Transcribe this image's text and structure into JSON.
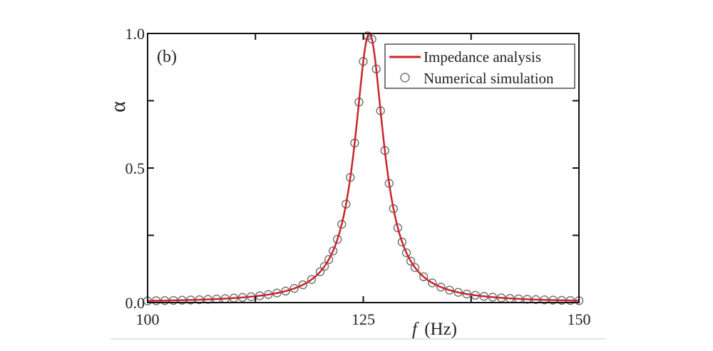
{
  "chart_data": {
    "type": "line",
    "panel_label": "(b)",
    "xlabel_italic": "f",
    "xlabel_unit": "(Hz)",
    "ylabel": "α",
    "xlim": [
      100,
      150
    ],
    "ylim": [
      0,
      1.0
    ],
    "x_ticks": [
      100,
      125,
      150
    ],
    "x_tick_labels": [
      "100",
      "125",
      "150"
    ],
    "x_minor_ticks": [
      112.5,
      137.5
    ],
    "y_ticks": [
      0.0,
      0.5,
      1.0
    ],
    "y_tick_labels": [
      "0.0",
      "0.5",
      "1.0"
    ],
    "y_minor_ticks": [
      0.25,
      0.75
    ],
    "grid": false,
    "legend_position": "top-right",
    "legend": [
      "Impedance analysis",
      "Numerical simulation"
    ],
    "colors": {
      "line": "#c8262c",
      "markers": "#777777",
      "axes": "#111111"
    },
    "series": [
      {
        "name": "Impedance analysis",
        "style": "line",
        "model": "lorentzian",
        "f0": 125.7,
        "gamma": 2.05,
        "peak": 1.0
      },
      {
        "name": "Numerical simulation",
        "style": "open-circle",
        "x": [
          100,
          101,
          102,
          103,
          104,
          105,
          106,
          107,
          108,
          109,
          110,
          111,
          112,
          113,
          114,
          115,
          116,
          117,
          118,
          119,
          120,
          120.5,
          121,
          121.5,
          122,
          122.5,
          123,
          123.5,
          124,
          124.5,
          125,
          125.5,
          126,
          126.5,
          127,
          127.5,
          128,
          128.5,
          129,
          129.5,
          130,
          130.5,
          131,
          132,
          133,
          134,
          135,
          136,
          137,
          138,
          139,
          140,
          141,
          142,
          143,
          144,
          145,
          146,
          147,
          148,
          149,
          150
        ],
        "y": [
          0.0063,
          0.0068,
          0.0074,
          0.0081,
          0.0088,
          0.0097,
          0.0107,
          0.0119,
          0.0132,
          0.0148,
          0.0168,
          0.0191,
          0.0219,
          0.0254,
          0.0298,
          0.0354,
          0.0428,
          0.0526,
          0.066,
          0.0855,
          0.1145,
          0.1345,
          0.16,
          0.192,
          0.235,
          0.291,
          0.366,
          0.465,
          0.593,
          0.745,
          0.896,
          0.991,
          0.979,
          0.868,
          0.713,
          0.565,
          0.443,
          0.349,
          0.278,
          0.225,
          0.185,
          0.154,
          0.13,
          0.0958,
          0.0731,
          0.0575,
          0.0464,
          0.0381,
          0.0319,
          0.027,
          0.0232,
          0.0201,
          0.0176,
          0.0156,
          0.0138,
          0.0124,
          0.0112,
          0.0101,
          0.0092,
          0.0084,
          0.0077,
          0.0071
        ]
      }
    ]
  }
}
